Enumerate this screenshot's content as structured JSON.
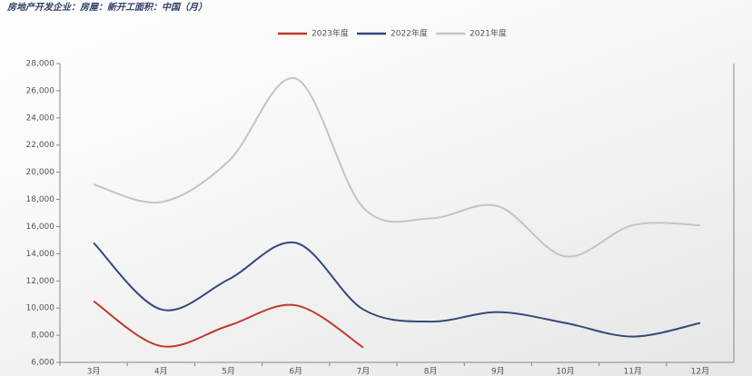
{
  "chart_data": {
    "type": "line",
    "title": "房地产开发企业：房屋：新开工面积：中国（月）",
    "categories": [
      "3月",
      "4月",
      "5月",
      "6月",
      "7月",
      "8月",
      "9月",
      "10月",
      "11月",
      "12月"
    ],
    "series": [
      {
        "name": "2023年度",
        "color": "#c0392b",
        "values": [
          10500,
          7200,
          8700,
          10200,
          7100,
          null,
          null,
          null,
          null,
          null
        ]
      },
      {
        "name": "2022年度",
        "color": "#34497a",
        "values": [
          14800,
          9900,
          12100,
          14800,
          9900,
          9000,
          9700,
          8900,
          7900,
          8900
        ]
      },
      {
        "name": "2021年度",
        "color": "#c4c4c4",
        "values": [
          19100,
          17800,
          20800,
          26900,
          17400,
          16600,
          17500,
          13800,
          16100,
          16100
        ]
      }
    ],
    "ylim": [
      6000,
      28000
    ],
    "yticks": [
      {
        "value": 6000,
        "label": "6,000"
      },
      {
        "value": 8000,
        "label": "8,000"
      },
      {
        "value": 10000,
        "label": "10,000"
      },
      {
        "value": 12000,
        "label": "12,000"
      },
      {
        "value": 14000,
        "label": "14,000"
      },
      {
        "value": 16000,
        "label": "16,000"
      },
      {
        "value": 18000,
        "label": "18,000"
      },
      {
        "value": 20000,
        "label": "20,000"
      },
      {
        "value": 22000,
        "label": "22,000"
      },
      {
        "value": 24000,
        "label": "24,000"
      },
      {
        "value": 26000,
        "label": "26,000"
      },
      {
        "value": 28000,
        "label": "28,000"
      }
    ],
    "legend": "top"
  }
}
